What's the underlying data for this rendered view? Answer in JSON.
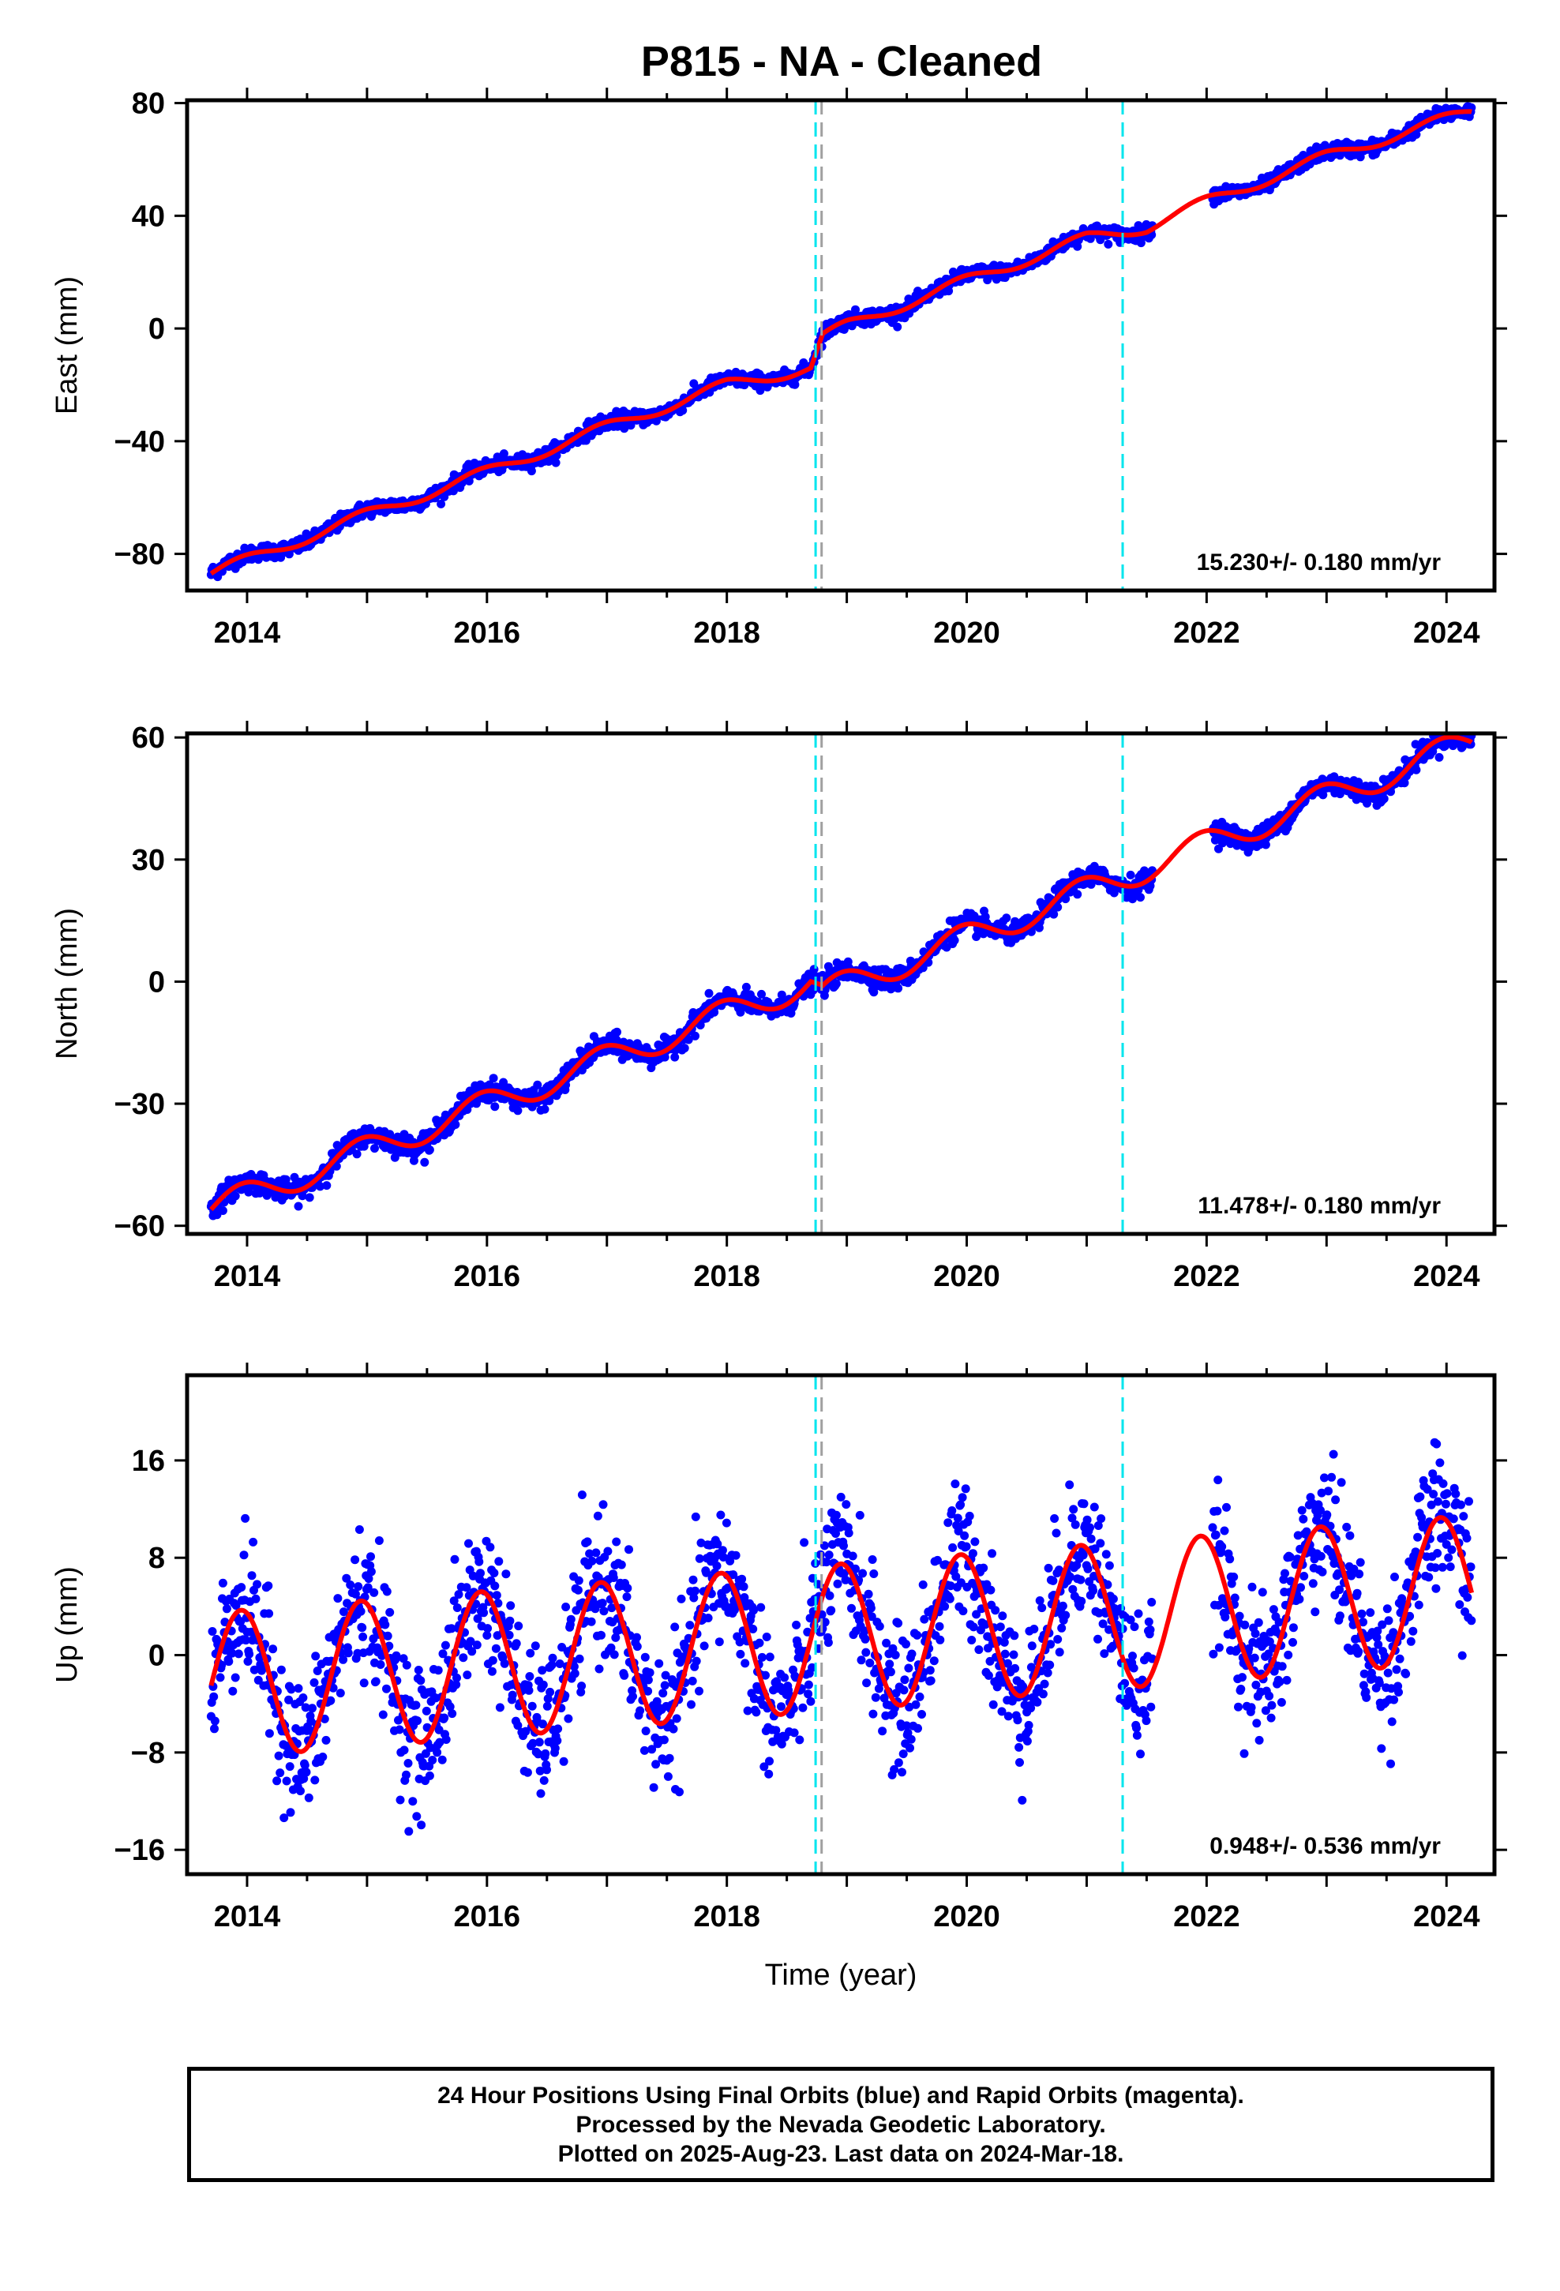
{
  "title": "P815  - NA - Cleaned",
  "chart_data": [
    {
      "type": "scatter",
      "component": "East",
      "ylabel": "East (mm)",
      "xlabel": "",
      "xlim": [
        2013.5,
        2024.4
      ],
      "ylim": [
        -93,
        81
      ],
      "xticks": [
        2014,
        2016,
        2018,
        2020,
        2022,
        2024
      ],
      "yticks": [
        -80,
        -40,
        0,
        40,
        80
      ],
      "rate_label": "15.230+/- 0.180 mm/yr",
      "rate_mm_yr": 15.23,
      "seasonal_amp": 2.0,
      "seasonal_phase": 0,
      "noise": 1.3,
      "data_start": 2013.7,
      "data_end": 2024.21,
      "fit": [
        [
          2013.7,
          -87
        ],
        [
          2015.0,
          -66
        ],
        [
          2016.0,
          -51
        ],
        [
          2017.0,
          -35
        ],
        [
          2018.0,
          -20
        ],
        [
          2018.7,
          -14
        ],
        [
          2018.8,
          -3
        ],
        [
          2019.0,
          1
        ],
        [
          2020.0,
          17
        ],
        [
          2021.0,
          32
        ],
        [
          2021.5,
          36
        ],
        [
          2022.0,
          45
        ],
        [
          2023.0,
          61
        ],
        [
          2024.2,
          77
        ]
      ],
      "data_gap": [
        2021.55,
        2022.05
      ],
      "offsets": [
        2018.74,
        2018.79,
        2021.3
      ],
      "colors": {
        "data": "#0000ff",
        "fit": "#ff0000",
        "offset": "#00e5ee"
      }
    },
    {
      "type": "scatter",
      "component": "North",
      "ylabel": "North (mm)",
      "xlabel": "",
      "xlim": [
        2013.5,
        2024.4
      ],
      "ylim": [
        -62,
        61
      ],
      "xticks": [
        2014,
        2016,
        2018,
        2020,
        2022,
        2024
      ],
      "yticks": [
        -60,
        -30,
        0,
        30,
        60
      ],
      "rate_label": "11.478+/- 0.180 mm/yr",
      "rate_mm_yr": 11.478,
      "seasonal_amp": 3.5,
      "seasonal_phase": 0,
      "noise": 1.3,
      "data_start": 2013.7,
      "data_end": 2024.21,
      "fit": [
        [
          2013.7,
          -56
        ],
        [
          2018.7,
          0
        ],
        [
          2018.8,
          -3
        ],
        [
          2024.2,
          59
        ]
      ],
      "data_gap": [
        2021.55,
        2022.05
      ],
      "offsets": [
        2018.74,
        2018.79,
        2021.3
      ],
      "colors": {
        "data": "#0000ff",
        "fit": "#ff0000",
        "offset": "#00e5ee"
      }
    },
    {
      "type": "scatter",
      "component": "Up",
      "ylabel": "Up (mm)",
      "xlabel": "Time (year)",
      "xlim": [
        2013.5,
        2024.4
      ],
      "ylim": [
        -18,
        23
      ],
      "xticks": [
        2014,
        2016,
        2018,
        2020,
        2022,
        2024
      ],
      "yticks": [
        -16,
        -8,
        0,
        8,
        16
      ],
      "rate_label": "0.948+/- 0.536 mm/yr",
      "rate_mm_yr": 0.948,
      "seasonal_amp": 6.0,
      "seasonal_phase": 0,
      "noise": 2.8,
      "data_start": 2013.7,
      "data_end": 2024.21,
      "fit": [
        [
          2013.7,
          -2.5
        ],
        [
          2024.2,
          5.5
        ]
      ],
      "data_gap": [
        2021.55,
        2022.05
      ],
      "offsets": [
        2018.74,
        2018.79,
        2021.3
      ],
      "colors": {
        "data": "#0000ff",
        "fit": "#ff0000",
        "offset": "#00e5ee"
      }
    }
  ],
  "footer": {
    "line1": "24 Hour Positions Using Final Orbits (blue) and Rapid Orbits (magenta).",
    "line2": "Processed by the Nevada Geodetic Laboratory.",
    "line3": "Plotted on 2025-Aug-23. Last data on 2024-Mar-18."
  }
}
